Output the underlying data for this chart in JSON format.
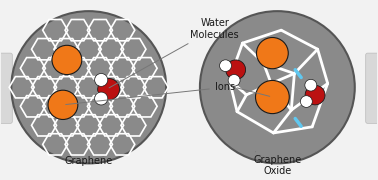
{
  "bg_color": "#f2f2f2",
  "circle_fill": "#8a8a8a",
  "circle_edge": "#555555",
  "circle_lw": 1.5,
  "hex_line_color": "#ffffff",
  "hex_lw": 1.2,
  "crack_line_color": "#ffffff",
  "crack_lw": 2.0,
  "blue_accent": "#60c8f0",
  "ion_color": "#f07818",
  "ion_edge": "#1a1a1a",
  "ion_lw": 0.8,
  "water_O_color": "#bb1111",
  "water_H_color": "#ffffff",
  "water_H_edge": "#1a1a1a",
  "water_lw": 0.6,
  "label_color": "#1a1a1a",
  "annotation_color": "#777777",
  "graphene_label": "Graphene",
  "grapheneoxide_label": "Graphene\nOxide",
  "water_label": "Water\nMolecules",
  "ions_label": "Ions",
  "side_tab_color": "#d8d8d8",
  "side_tab_edge": "#bbbbbb",
  "font_size": 7.0
}
